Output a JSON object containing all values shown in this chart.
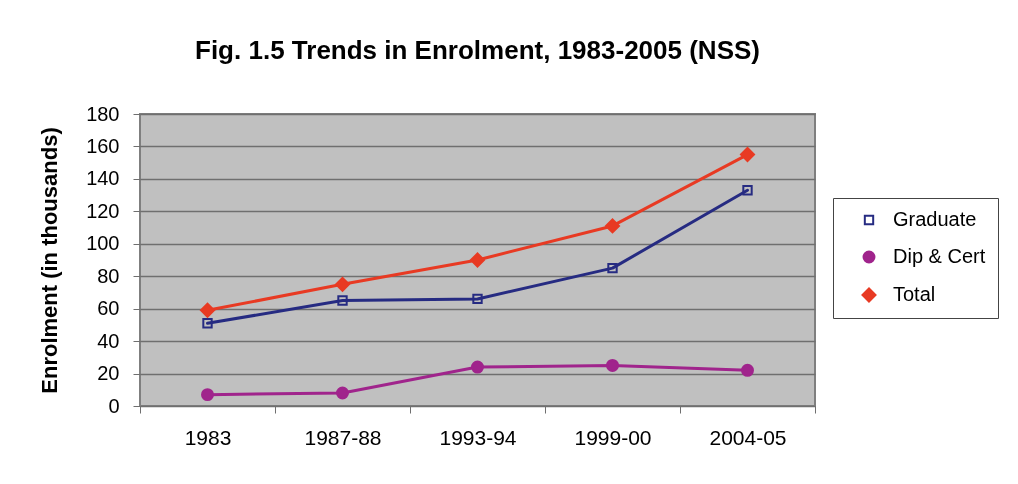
{
  "chart_data": {
    "type": "line",
    "title": "Fig. 1.5 Trends in Enrolment, 1983-2005 (NSS)",
    "ylabel": "Enrolment (in thousands)",
    "categories": [
      "1983",
      "1987-88",
      "1993-94",
      "1999-00",
      "2004-05"
    ],
    "series": [
      {
        "name": "Graduate",
        "color": "#262b82",
        "marker": "square",
        "values": [
          51,
          65,
          66,
          85,
          133
        ]
      },
      {
        "name": "Dip & Cert",
        "color": "#a0248c",
        "marker": "circle",
        "values": [
          7,
          8,
          24,
          25,
          22
        ]
      },
      {
        "name": "Total",
        "color": "#e83a23",
        "marker": "diamond",
        "values": [
          59,
          75,
          90,
          111,
          155
        ]
      }
    ],
    "ylim": [
      0,
      180
    ],
    "yticks": [
      0,
      20,
      40,
      60,
      80,
      100,
      120,
      140,
      160,
      180
    ],
    "grid": "y",
    "legend": "right",
    "line_style": "solid"
  }
}
